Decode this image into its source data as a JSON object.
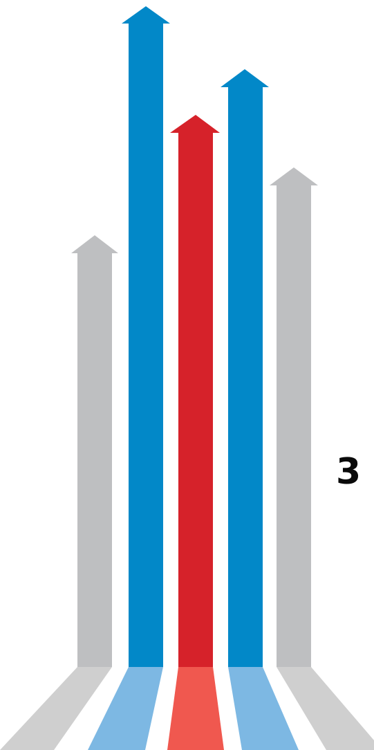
{
  "label": "3",
  "colors": {
    "blue": "#0288c8",
    "red": "#d6222a",
    "gray": "#bebfc1",
    "blue_light": "#7db8e3",
    "red_light": "#f0584f",
    "gray_light": "#cfcfcf"
  },
  "arrows": [
    {
      "name": "gray-left",
      "color": "gray"
    },
    {
      "name": "blue-left",
      "color": "blue"
    },
    {
      "name": "red-center",
      "color": "red"
    },
    {
      "name": "blue-right",
      "color": "blue"
    },
    {
      "name": "gray-right",
      "color": "gray"
    }
  ]
}
